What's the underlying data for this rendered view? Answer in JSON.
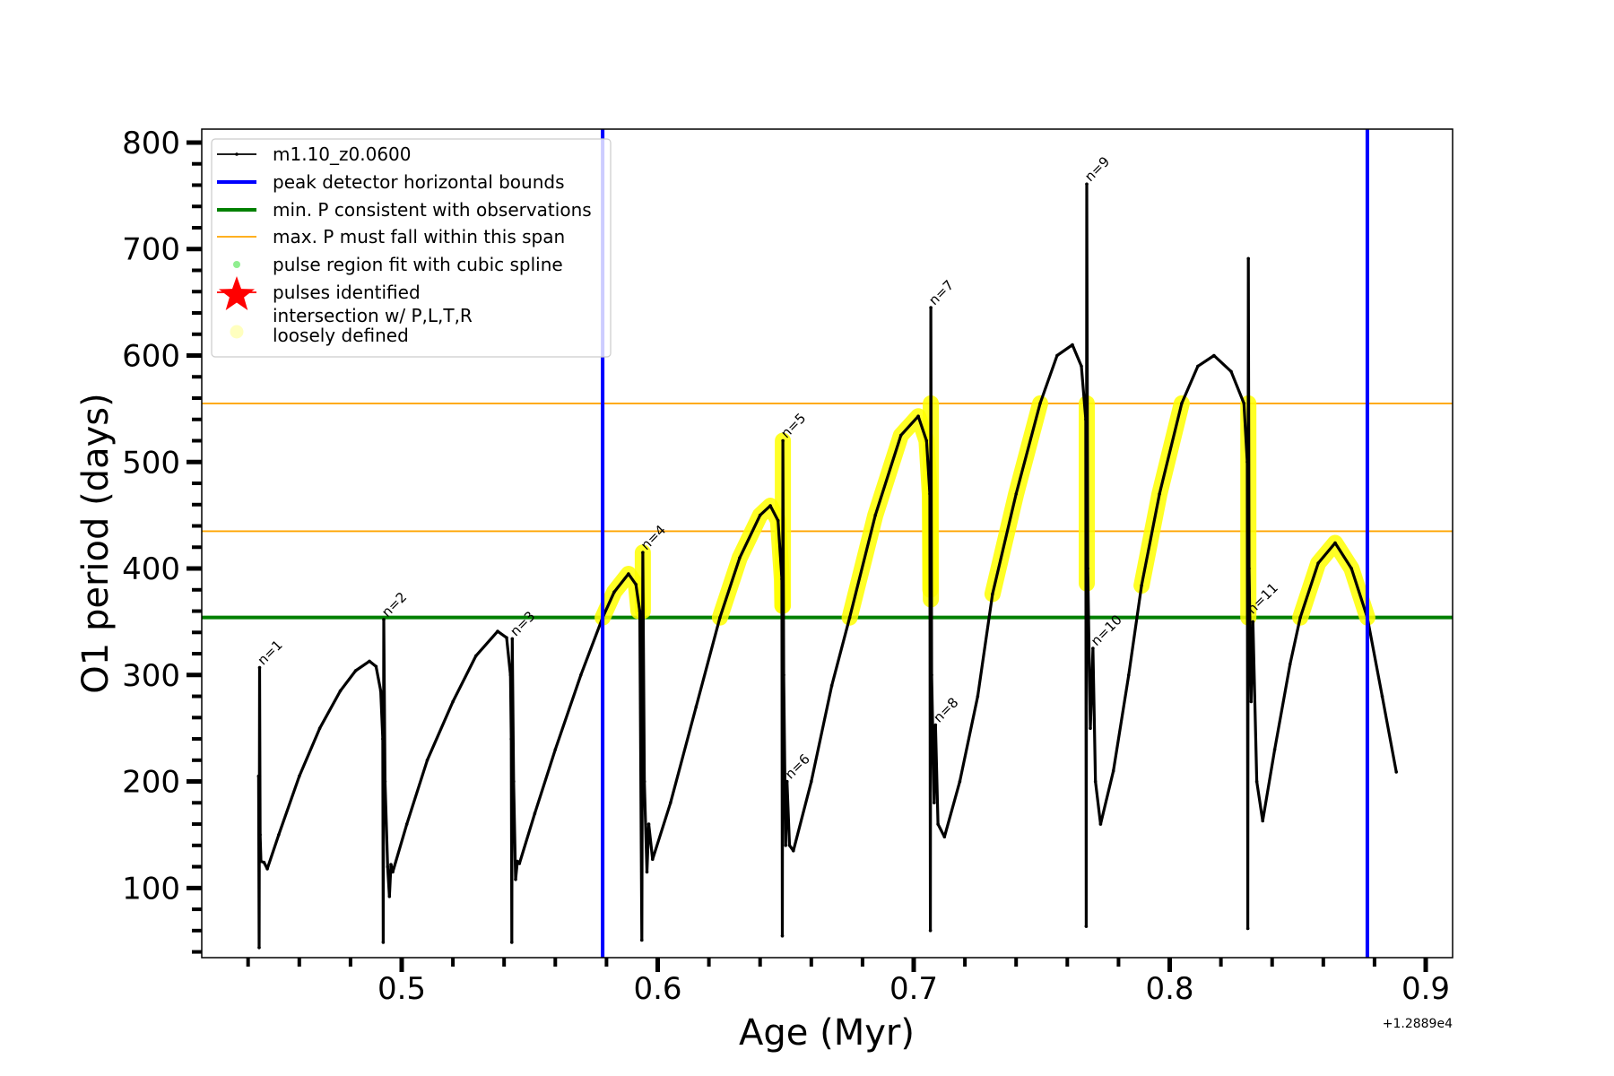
{
  "chart_data": {
    "type": "line",
    "title": "",
    "xlabel": "Age (Myr)",
    "ylabel": "O1 period (days)",
    "x_offset_label": "+1.2889e4",
    "xlim": [
      0.4219,
      0.9105
    ],
    "ylim": [
      34.6,
      812.6
    ],
    "x_major_ticks": [
      0.5,
      0.6,
      0.7,
      0.8,
      0.9
    ],
    "x_tick_labels": [
      "0.5",
      "0.6",
      "0.7",
      "0.8",
      "0.9"
    ],
    "x_minor_step": 0.02,
    "y_major_ticks": [
      100,
      200,
      300,
      400,
      500,
      600,
      700,
      800
    ],
    "y_tick_labels": [
      "100",
      "200",
      "300",
      "400",
      "500",
      "600",
      "700",
      "800"
    ],
    "y_minor_step": 20,
    "grid": false,
    "legend_position": "top-left",
    "colors": {
      "track": "#000000",
      "peak_bounds": "#0000ff",
      "min_p": "#008000",
      "max_p": "#ffa500",
      "spline": "#90ee90",
      "pulses": "#ff0000",
      "intersection": "#ffff00"
    },
    "legend": [
      {
        "label": "m1.10_z0.0600",
        "kind": "line-marker",
        "color_key": "track"
      },
      {
        "label": "peak detector horizontal bounds",
        "kind": "thick-line",
        "color_key": "peak_bounds"
      },
      {
        "label": "min. P consistent with observations",
        "kind": "thick-line",
        "color_key": "min_p"
      },
      {
        "label": "max. P must fall within this span",
        "kind": "thin-line",
        "color_key": "max_p"
      },
      {
        "label": "pulse region fit with cubic spline",
        "kind": "dot",
        "color_key": "spline"
      },
      {
        "label": "pulses identified",
        "kind": "star",
        "color_key": "pulses"
      },
      {
        "label": "intersection w/ P,L,T,R",
        "label2": "loosely defined",
        "kind": "big-dot",
        "color_key": "intersection"
      }
    ],
    "vertical_lines": [
      {
        "name": "peak-bound-left",
        "x": 0.5785
      },
      {
        "name": "peak-bound-right",
        "x": 0.8772
      }
    ],
    "horizontal_lines": [
      {
        "name": "min-p-line",
        "y": 354,
        "color_key": "min_p"
      },
      {
        "name": "max-p-upper",
        "y": 555,
        "color_key": "max_p"
      },
      {
        "name": "max-p-lower",
        "y": 435,
        "color_key": "max_p"
      }
    ],
    "series": [
      {
        "name": "m1.10_z0.0600",
        "points": [
          [
            0.4441,
            205
          ],
          [
            0.4443,
            44
          ],
          [
            0.4445,
            307
          ],
          [
            0.4447,
            150
          ],
          [
            0.445,
            125
          ],
          [
            0.4462,
            124
          ],
          [
            0.4475,
            118
          ],
          [
            0.452,
            150
          ],
          [
            0.46,
            205
          ],
          [
            0.468,
            250
          ],
          [
            0.476,
            285
          ],
          [
            0.482,
            304
          ],
          [
            0.4874,
            313
          ],
          [
            0.49,
            308
          ],
          [
            0.4918,
            285
          ],
          [
            0.4926,
            240
          ],
          [
            0.4928,
            49
          ],
          [
            0.493,
            352
          ],
          [
            0.4935,
            200
          ],
          [
            0.4945,
            120
          ],
          [
            0.4952,
            92
          ],
          [
            0.4958,
            122
          ],
          [
            0.4965,
            115
          ],
          [
            0.502,
            160
          ],
          [
            0.51,
            220
          ],
          [
            0.52,
            275
          ],
          [
            0.529,
            318
          ],
          [
            0.5375,
            341
          ],
          [
            0.541,
            335
          ],
          [
            0.5425,
            300
          ],
          [
            0.5428,
            240
          ],
          [
            0.543,
            49
          ],
          [
            0.5432,
            334
          ],
          [
            0.5437,
            200
          ],
          [
            0.5445,
            108
          ],
          [
            0.5452,
            125
          ],
          [
            0.546,
            123
          ],
          [
            0.552,
            170
          ],
          [
            0.56,
            230
          ],
          [
            0.57,
            300
          ],
          [
            0.5785,
            354
          ],
          [
            0.583,
            378
          ],
          [
            0.5886,
            395
          ],
          [
            0.5915,
            385
          ],
          [
            0.593,
            360
          ],
          [
            0.5938,
            51
          ],
          [
            0.5942,
            415
          ],
          [
            0.5948,
            200
          ],
          [
            0.5958,
            115
          ],
          [
            0.5965,
            160
          ],
          [
            0.598,
            127
          ],
          [
            0.605,
            180
          ],
          [
            0.615,
            270
          ],
          [
            0.6243,
            354
          ],
          [
            0.632,
            410
          ],
          [
            0.64,
            450
          ],
          [
            0.644,
            459
          ],
          [
            0.647,
            445
          ],
          [
            0.6485,
            390
          ],
          [
            0.6487,
            55
          ],
          [
            0.6489,
            520
          ],
          [
            0.6492,
            300
          ],
          [
            0.65,
            140
          ],
          [
            0.6505,
            200
          ],
          [
            0.6515,
            140
          ],
          [
            0.653,
            135
          ],
          [
            0.66,
            200
          ],
          [
            0.668,
            290
          ],
          [
            0.675,
            354
          ],
          [
            0.685,
            450
          ],
          [
            0.695,
            525
          ],
          [
            0.7018,
            543
          ],
          [
            0.705,
            520
          ],
          [
            0.7063,
            470
          ],
          [
            0.7065,
            60
          ],
          [
            0.7067,
            645
          ],
          [
            0.707,
            300
          ],
          [
            0.708,
            180
          ],
          [
            0.7085,
            253
          ],
          [
            0.7095,
            160
          ],
          [
            0.712,
            148
          ],
          [
            0.718,
            200
          ],
          [
            0.725,
            280
          ],
          [
            0.7308,
            376
          ],
          [
            0.74,
            470
          ],
          [
            0.7494,
            555
          ],
          [
            0.756,
            600
          ],
          [
            0.762,
            610
          ],
          [
            0.7655,
            590
          ],
          [
            0.7672,
            540
          ],
          [
            0.7674,
            64
          ],
          [
            0.7676,
            761
          ],
          [
            0.768,
            400
          ],
          [
            0.769,
            250
          ],
          [
            0.77,
            325
          ],
          [
            0.771,
            200
          ],
          [
            0.773,
            160
          ],
          [
            0.778,
            210
          ],
          [
            0.784,
            300
          ],
          [
            0.789,
            384
          ],
          [
            0.796,
            470
          ],
          [
            0.8047,
            555
          ],
          [
            0.811,
            590
          ],
          [
            0.8173,
            600
          ],
          [
            0.824,
            585
          ],
          [
            0.829,
            555
          ],
          [
            0.8303,
            500
          ],
          [
            0.8305,
            62
          ],
          [
            0.8307,
            691
          ],
          [
            0.831,
            400
          ],
          [
            0.8318,
            275
          ],
          [
            0.8325,
            350
          ],
          [
            0.834,
            200
          ],
          [
            0.8363,
            163
          ],
          [
            0.841,
            230
          ],
          [
            0.847,
            310
          ],
          [
            0.851,
            354
          ],
          [
            0.858,
            405
          ],
          [
            0.8646,
            424
          ],
          [
            0.871,
            400
          ],
          [
            0.8772,
            354
          ],
          [
            0.883,
            280
          ],
          [
            0.8885,
            209
          ]
        ]
      }
    ],
    "intersection_segments": [
      [
        [
          0.5785,
          354
        ],
        [
          0.583,
          378
        ],
        [
          0.5886,
          395
        ],
        [
          0.5915,
          385
        ],
        [
          0.5925,
          360
        ]
      ],
      [
        [
          0.5942,
          360
        ],
        [
          0.5942,
          415
        ]
      ],
      [
        [
          0.6243,
          354
        ],
        [
          0.632,
          410
        ],
        [
          0.64,
          450
        ],
        [
          0.644,
          459
        ],
        [
          0.647,
          445
        ],
        [
          0.6485,
          390
        ],
        [
          0.6487,
          365
        ]
      ],
      [
        [
          0.6489,
          365
        ],
        [
          0.6489,
          520
        ]
      ],
      [
        [
          0.675,
          354
        ],
        [
          0.685,
          450
        ],
        [
          0.695,
          525
        ],
        [
          0.7018,
          543
        ],
        [
          0.705,
          520
        ],
        [
          0.7063,
          470
        ],
        [
          0.7065,
          380
        ]
      ],
      [
        [
          0.7067,
          371
        ],
        [
          0.7067,
          555
        ]
      ],
      [
        [
          0.7308,
          376
        ],
        [
          0.74,
          470
        ],
        [
          0.7494,
          555
        ]
      ],
      [
        [
          0.7676,
          386
        ],
        [
          0.7676,
          555
        ]
      ],
      [
        [
          0.789,
          384
        ],
        [
          0.796,
          470
        ],
        [
          0.8047,
          555
        ]
      ],
      [
        [
          0.8307,
          354
        ],
        [
          0.8307,
          555
        ]
      ],
      [
        [
          0.851,
          354
        ],
        [
          0.858,
          405
        ],
        [
          0.8646,
          424
        ],
        [
          0.871,
          400
        ],
        [
          0.8772,
          354
        ]
      ]
    ],
    "pulse_labels": [
      {
        "text": "n=1",
        "x": 0.4445,
        "y": 307
      },
      {
        "text": "n=2",
        "x": 0.493,
        "y": 352
      },
      {
        "text": "n=3",
        "x": 0.5432,
        "y": 334
      },
      {
        "text": "n=4",
        "x": 0.5942,
        "y": 415
      },
      {
        "text": "n=5",
        "x": 0.6489,
        "y": 520
      },
      {
        "text": "n=6",
        "x": 0.6505,
        "y": 200
      },
      {
        "text": "n=7",
        "x": 0.7067,
        "y": 645
      },
      {
        "text": "n=8",
        "x": 0.7085,
        "y": 253
      },
      {
        "text": "n=9",
        "x": 0.7676,
        "y": 761
      },
      {
        "text": "n=10",
        "x": 0.77,
        "y": 325
      },
      {
        "text": "n=11",
        "x": 0.831,
        "y": 355
      }
    ]
  }
}
